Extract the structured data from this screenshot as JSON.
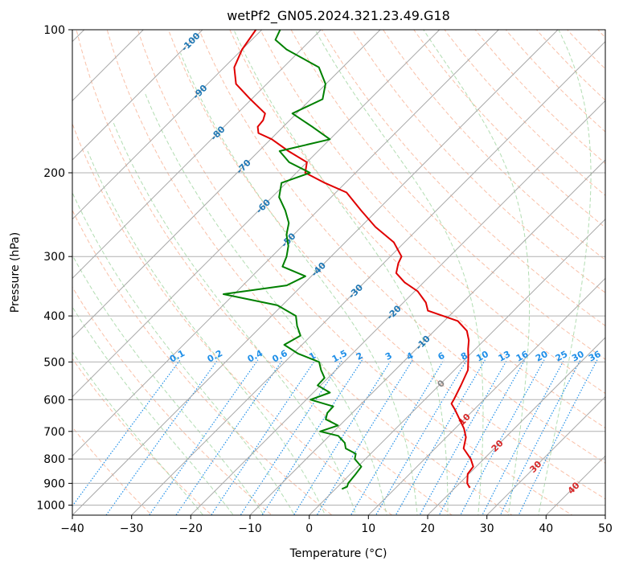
{
  "chart_data": {
    "type": "line",
    "subtype": "skew-T log-P diagram",
    "title": "wetPf2_GN05.2024.321.23.49.G18",
    "xlabel": "Temperature (°C)",
    "ylabel": "Pressure (hPa)",
    "xlim": [
      -40,
      50
    ],
    "ylim": [
      1050,
      100
    ],
    "y_scale": "log",
    "grid": true,
    "x_ticks": [
      "−40",
      "−30",
      "−20",
      "−10",
      "0",
      "10",
      "20",
      "30",
      "40",
      "50"
    ],
    "y_ticks": [
      "100",
      "200",
      "300",
      "400",
      "500",
      "600",
      "700",
      "800",
      "900",
      "1000"
    ],
    "isotherm_labels": [
      "-100",
      "-90",
      "-80",
      "-70",
      "-60",
      "-50",
      "-40",
      "-30",
      "-20",
      "-10",
      "0",
      "10",
      "20",
      "30",
      "40"
    ],
    "mixing_ratio_labels": [
      "0.1",
      "0.2",
      "0.4",
      "0.6",
      "1",
      "1.5",
      "2",
      "3",
      "4",
      "6",
      "8",
      "10",
      "13",
      "16",
      "20",
      "25",
      "30",
      "36"
    ],
    "series": [
      {
        "role": "temperature",
        "color": "#e00000",
        "pressure": [
          920,
          900,
          860,
          830,
          800,
          760,
          720,
          690,
          660,
          630,
          612,
          600,
          560,
          520,
          490,
          470,
          450,
          430,
          410,
          390,
          375,
          355,
          340,
          325,
          310,
          300,
          280,
          260,
          240,
          220,
          210,
          200,
          190,
          180,
          170,
          165,
          160,
          155,
          150,
          140,
          130,
          120,
          110,
          100
        ],
        "temperature": [
          22.5,
          21.3,
          19.8,
          19.5,
          17.8,
          14.8,
          13.3,
          11.5,
          9.2,
          6.8,
          5.2,
          4.9,
          3.7,
          2.3,
          0.3,
          -1.2,
          -2.6,
          -4.5,
          -7.7,
          -14.5,
          -16.2,
          -19.5,
          -23.2,
          -26.2,
          -27.5,
          -28.1,
          -31.8,
          -37.5,
          -42.7,
          -48.2,
          -53.5,
          -58.5,
          -60.0,
          -65.0,
          -69.8,
          -73.1,
          -74.3,
          -74.5,
          -75.3,
          -80.2,
          -85.2,
          -88.3,
          -90.0,
          -91.0
        ]
      },
      {
        "role": "dewpoint",
        "color": "#008000",
        "pressure": [
          925,
          915,
          900,
          860,
          830,
          800,
          780,
          760,
          740,
          715,
          700,
          680,
          660,
          640,
          620,
          600,
          580,
          560,
          540,
          520,
          500,
          480,
          460,
          440,
          420,
          400,
          380,
          360,
          345,
          330,
          315,
          300,
          285,
          270,
          255,
          240,
          225,
          210,
          200,
          190,
          180,
          170,
          160,
          150,
          140,
          130,
          120,
          110,
          105,
          100
        ],
        "dewpoint": [
          1.1,
          1.6,
          1.2,
          0.9,
          0.6,
          -1.8,
          -2.5,
          -5.1,
          -6.2,
          -8.5,
          -12.3,
          -10.3,
          -13.4,
          -14.2,
          -14.3,
          -19.3,
          -17.2,
          -20.5,
          -20.6,
          -22.5,
          -24.2,
          -29.2,
          -33.0,
          -31.8,
          -34.0,
          -35.9,
          -40.8,
          -51.8,
          -42.6,
          -41.0,
          -46.5,
          -47.5,
          -49.0,
          -51.2,
          -52.8,
          -55.5,
          -58.8,
          -60.8,
          -57.7,
          -63.0,
          -66.5,
          -60.0,
          -65.1,
          -70.7,
          -68.0,
          -70.1,
          -74.0,
          -82.5,
          -86.0,
          -86.9
        ]
      }
    ]
  }
}
